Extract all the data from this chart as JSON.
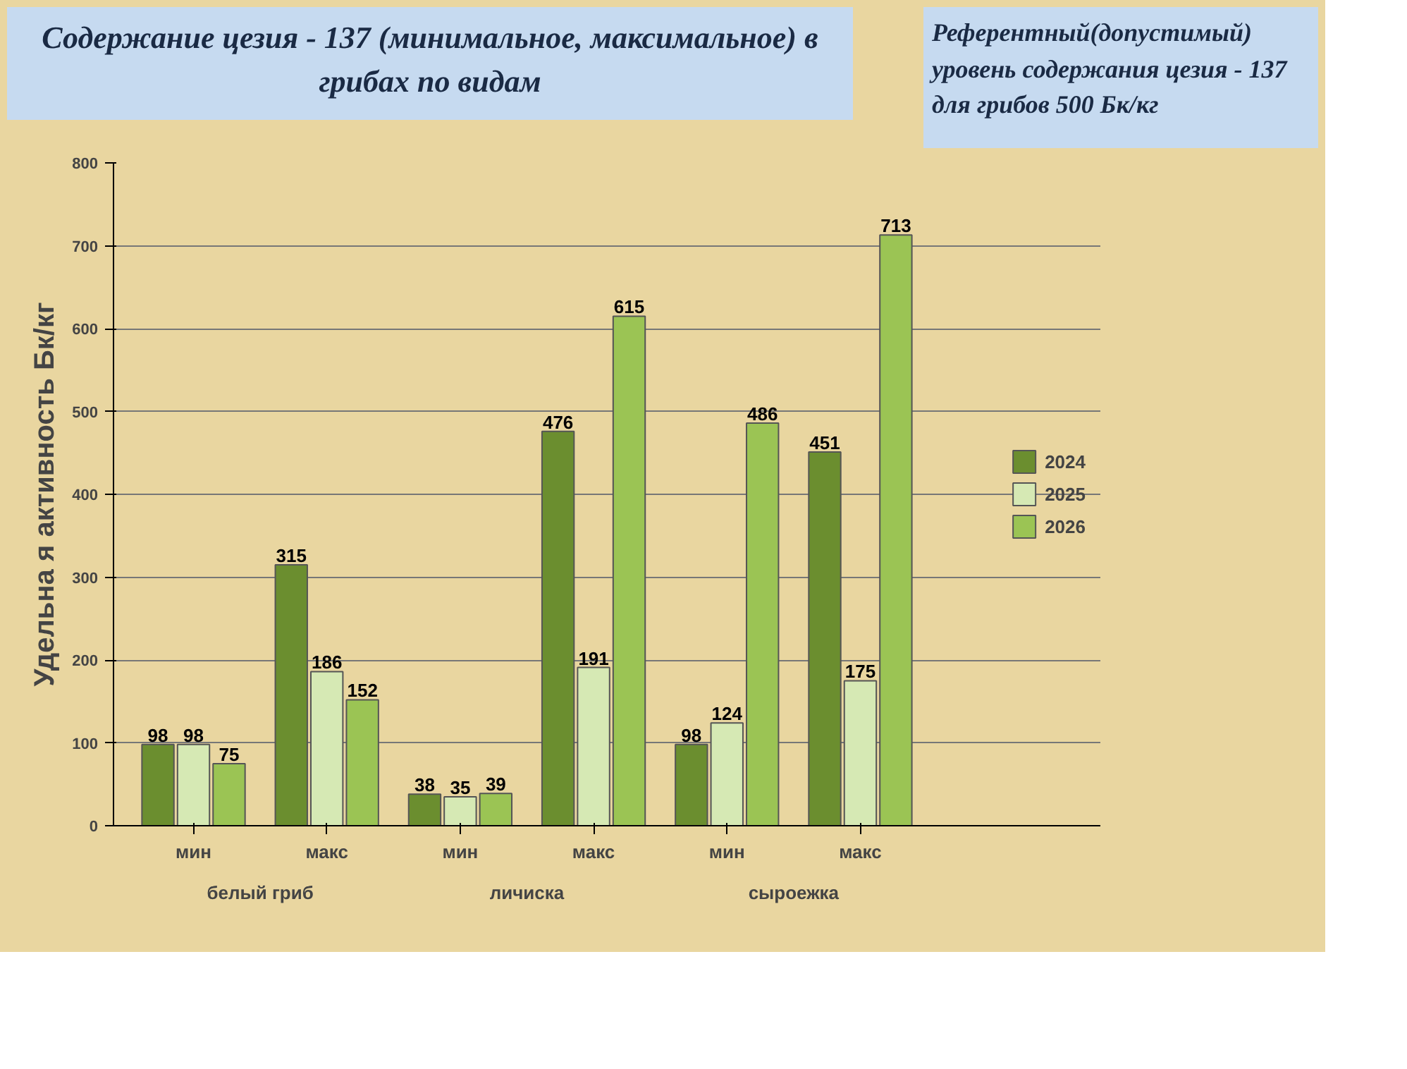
{
  "chart_data": {
    "type": "bar",
    "title": "Содержание цезия - 137 (минимальное, максимальное) в грибах по видам",
    "annotations": [
      "Референтный(допустимый) уровень содержания цезия - 137 для грибов  500 Бк/кг",
      "белый гриб",
      "личиска",
      "сыроежка"
    ],
    "ylabel": "Удельна я активность Бк/кг",
    "categories": [
      "мин",
      "макс",
      "мин",
      "макс",
      "мин",
      "макс"
    ],
    "series": [
      {
        "name": "2024",
        "color": "#6b8e2f",
        "values": [
          98,
          315,
          38,
          476,
          98,
          451
        ]
      },
      {
        "name": "2025",
        "color": "#d6e9b4",
        "values": [
          98,
          186,
          35,
          191,
          124,
          175
        ]
      },
      {
        "name": "2026",
        "color": "#9bc454",
        "values": [
          75,
          152,
          39,
          615,
          486,
          713
        ]
      }
    ],
    "ylim": [
      0,
      800
    ],
    "yticks": [
      0,
      100,
      200,
      300,
      400,
      500,
      600,
      700,
      800
    ],
    "grid": "y",
    "legend": "right",
    "data_labels": true
  }
}
